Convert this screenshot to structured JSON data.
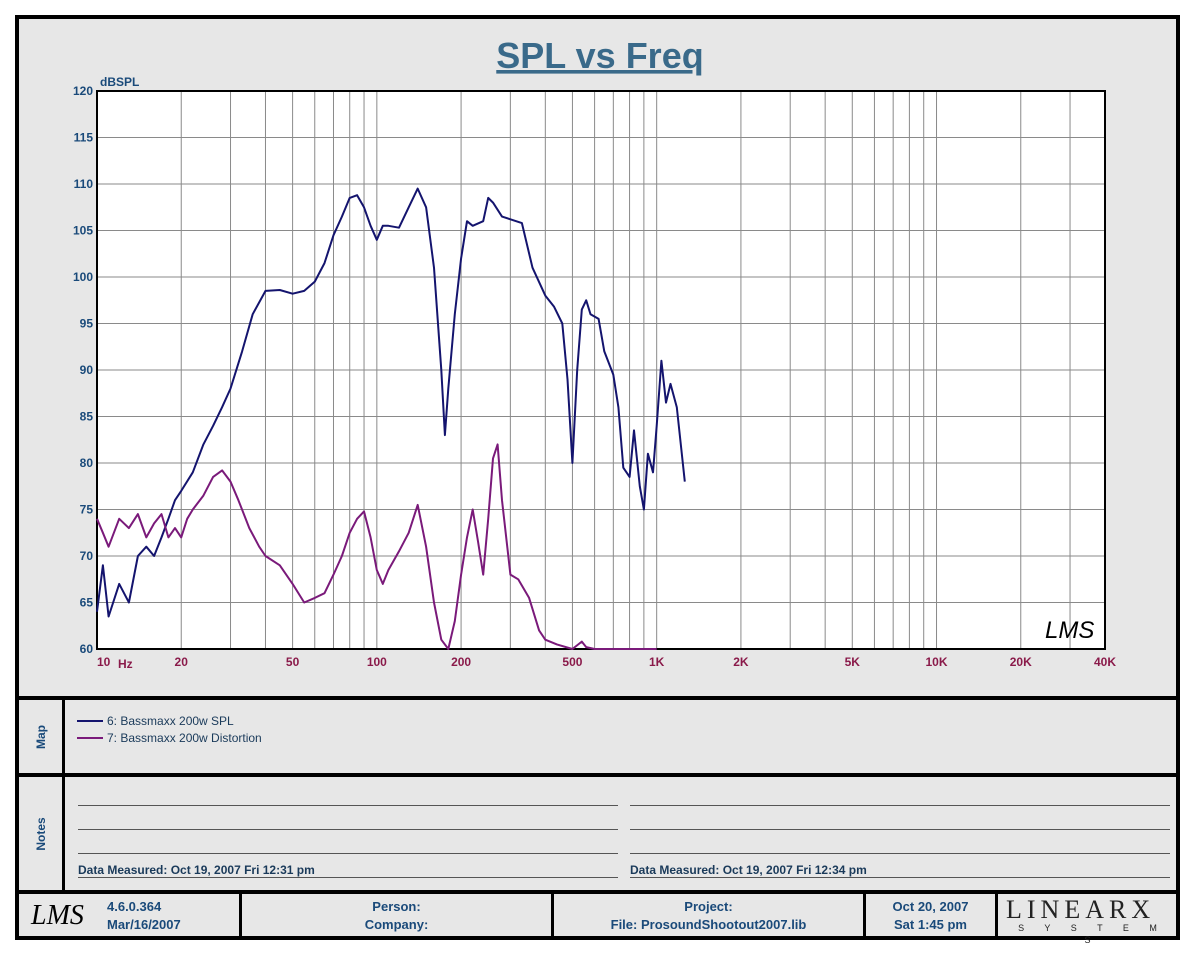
{
  "chart_data": {
    "type": "line",
    "title": "SPL vs Freq",
    "ylabel": "dBSPL",
    "xlabel": "Hz",
    "x_scale": "log",
    "xlim": [
      10,
      40000
    ],
    "ylim": [
      60,
      120
    ],
    "grid": true,
    "y_ticks": [
      "120",
      "115",
      "110",
      "105",
      "100",
      "95",
      "90",
      "85",
      "80",
      "75",
      "70",
      "65",
      "60"
    ],
    "x_ticks": [
      {
        "value": 10,
        "label": "10"
      },
      {
        "value": 20,
        "label": "20"
      },
      {
        "value": 50,
        "label": "50"
      },
      {
        "value": 100,
        "label": "100"
      },
      {
        "value": 200,
        "label": "200"
      },
      {
        "value": 500,
        "label": "500"
      },
      {
        "value": 1000,
        "label": "1K"
      },
      {
        "value": 2000,
        "label": "2K"
      },
      {
        "value": 5000,
        "label": "5K"
      },
      {
        "value": 10000,
        "label": "10K"
      },
      {
        "value": 20000,
        "label": "20K"
      },
      {
        "value": 40000,
        "label": "40K"
      }
    ],
    "series": [
      {
        "name": "6: Bassmaxx 200w SPL",
        "color": "#14146e",
        "points": [
          [
            10,
            64
          ],
          [
            10.5,
            69
          ],
          [
            11,
            63.5
          ],
          [
            12,
            67
          ],
          [
            13,
            65
          ],
          [
            14,
            70
          ],
          [
            15,
            71
          ],
          [
            16,
            70
          ],
          [
            17,
            72
          ],
          [
            18,
            74
          ],
          [
            19,
            76
          ],
          [
            20,
            77
          ],
          [
            22,
            79
          ],
          [
            24,
            82
          ],
          [
            26,
            84
          ],
          [
            28,
            86
          ],
          [
            30,
            88
          ],
          [
            33,
            92
          ],
          [
            36,
            96
          ],
          [
            40,
            98.5
          ],
          [
            45,
            98.6
          ],
          [
            50,
            98.2
          ],
          [
            55,
            98.5
          ],
          [
            60,
            99.5
          ],
          [
            65,
            101.5
          ],
          [
            70,
            104.5
          ],
          [
            75,
            106.5
          ],
          [
            80,
            108.5
          ],
          [
            85,
            108.8
          ],
          [
            90,
            107.5
          ],
          [
            95,
            105.5
          ],
          [
            100,
            104
          ],
          [
            105,
            105.5
          ],
          [
            110,
            105.5
          ],
          [
            120,
            105.3
          ],
          [
            130,
            107.5
          ],
          [
            140,
            109.5
          ],
          [
            150,
            107.5
          ],
          [
            160,
            101
          ],
          [
            170,
            90
          ],
          [
            175,
            83
          ],
          [
            180,
            88
          ],
          [
            190,
            96
          ],
          [
            200,
            102
          ],
          [
            210,
            106
          ],
          [
            220,
            105.5
          ],
          [
            240,
            106
          ],
          [
            250,
            108.5
          ],
          [
            260,
            108
          ],
          [
            280,
            106.5
          ],
          [
            300,
            106.2
          ],
          [
            330,
            105.8
          ],
          [
            360,
            101
          ],
          [
            400,
            98
          ],
          [
            430,
            96.8
          ],
          [
            460,
            95
          ],
          [
            480,
            89
          ],
          [
            500,
            80
          ],
          [
            520,
            90
          ],
          [
            540,
            96.5
          ],
          [
            560,
            97.5
          ],
          [
            580,
            96
          ],
          [
            620,
            95.5
          ],
          [
            650,
            92
          ],
          [
            700,
            89.5
          ],
          [
            730,
            86
          ],
          [
            760,
            79.5
          ],
          [
            800,
            78.5
          ],
          [
            830,
            83.5
          ],
          [
            870,
            77.5
          ],
          [
            900,
            75
          ],
          [
            930,
            81
          ],
          [
            970,
            79
          ],
          [
            1000,
            84
          ],
          [
            1040,
            91
          ],
          [
            1080,
            86.5
          ],
          [
            1120,
            88.5
          ],
          [
            1180,
            86
          ],
          [
            1230,
            81
          ],
          [
            1260,
            78
          ]
        ]
      },
      {
        "name": "7: Bassmaxx 200w Distortion",
        "color": "#7a1a7a",
        "points": [
          [
            10,
            74
          ],
          [
            10.5,
            72.5
          ],
          [
            11,
            71
          ],
          [
            12,
            74
          ],
          [
            13,
            73
          ],
          [
            14,
            74.5
          ],
          [
            15,
            72
          ],
          [
            16,
            73.5
          ],
          [
            17,
            74.5
          ],
          [
            18,
            72
          ],
          [
            19,
            73
          ],
          [
            20,
            72
          ],
          [
            21,
            74
          ],
          [
            22,
            75
          ],
          [
            24,
            76.5
          ],
          [
            26,
            78.5
          ],
          [
            28,
            79.2
          ],
          [
            30,
            78
          ],
          [
            32,
            76
          ],
          [
            35,
            73
          ],
          [
            38,
            71
          ],
          [
            40,
            70
          ],
          [
            45,
            69
          ],
          [
            50,
            67
          ],
          [
            55,
            65
          ],
          [
            60,
            65.5
          ],
          [
            65,
            66
          ],
          [
            70,
            68
          ],
          [
            75,
            70
          ],
          [
            80,
            72.5
          ],
          [
            85,
            74
          ],
          [
            90,
            74.8
          ],
          [
            95,
            72
          ],
          [
            100,
            68.5
          ],
          [
            105,
            67
          ],
          [
            110,
            68.5
          ],
          [
            120,
            70.5
          ],
          [
            130,
            72.5
          ],
          [
            140,
            75.5
          ],
          [
            150,
            71
          ],
          [
            160,
            65
          ],
          [
            170,
            61
          ],
          [
            180,
            60
          ],
          [
            190,
            63
          ],
          [
            200,
            68
          ],
          [
            210,
            72
          ],
          [
            220,
            75
          ],
          [
            230,
            71.5
          ],
          [
            240,
            68
          ],
          [
            250,
            74
          ],
          [
            260,
            80.5
          ],
          [
            270,
            82
          ],
          [
            280,
            76
          ],
          [
            300,
            68
          ],
          [
            320,
            67.5
          ],
          [
            350,
            65.5
          ],
          [
            380,
            62
          ],
          [
            400,
            61
          ],
          [
            440,
            60.5
          ],
          [
            500,
            60
          ],
          [
            540,
            60.8
          ],
          [
            560,
            60.2
          ],
          [
            600,
            60
          ],
          [
            700,
            60
          ],
          [
            800,
            60
          ],
          [
            900,
            60
          ],
          [
            1000,
            60
          ]
        ]
      }
    ]
  },
  "map": {
    "label": "Map",
    "items": [
      {
        "label": "6: Bassmaxx 200w SPL",
        "color": "#14146e"
      },
      {
        "label": "7: Bassmaxx 200w Distortion",
        "color": "#7a1a7a"
      }
    ]
  },
  "notes": {
    "label": "Notes",
    "left_measured": "Data Measured: Oct 19, 2007  Fri 12:31 pm",
    "right_measured": "Data Measured: Oct 19, 2007  Fri 12:34 pm"
  },
  "watermark": "LMS",
  "footer": {
    "logo": "LMS",
    "version": "4.6.0.364",
    "version_date": "Mar/16/2007",
    "person_label": "Person:",
    "company_label": "Company:",
    "project_label": "Project:",
    "file_label": "File: ProsoundShootout2007.lib",
    "date": "Oct 20, 2007",
    "time": "Sat  1:45 pm",
    "brand": "LINEARX",
    "brand_sub": "S Y S T E M S"
  }
}
